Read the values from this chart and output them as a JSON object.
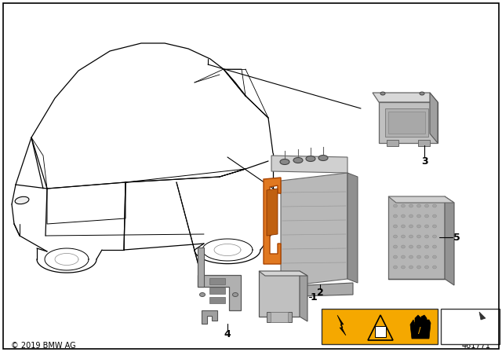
{
  "bg": "#ffffff",
  "border": "#000000",
  "copyright": "© 2019 BMW AG",
  "part_number": "461771",
  "car_color": "#000000",
  "car_lw": 0.9,
  "part_color": "#a0a0a0",
  "orange": "#E07820",
  "warn_yellow": "#F5A800",
  "fig_w": 6.4,
  "fig_h": 4.48,
  "dpi": 100
}
